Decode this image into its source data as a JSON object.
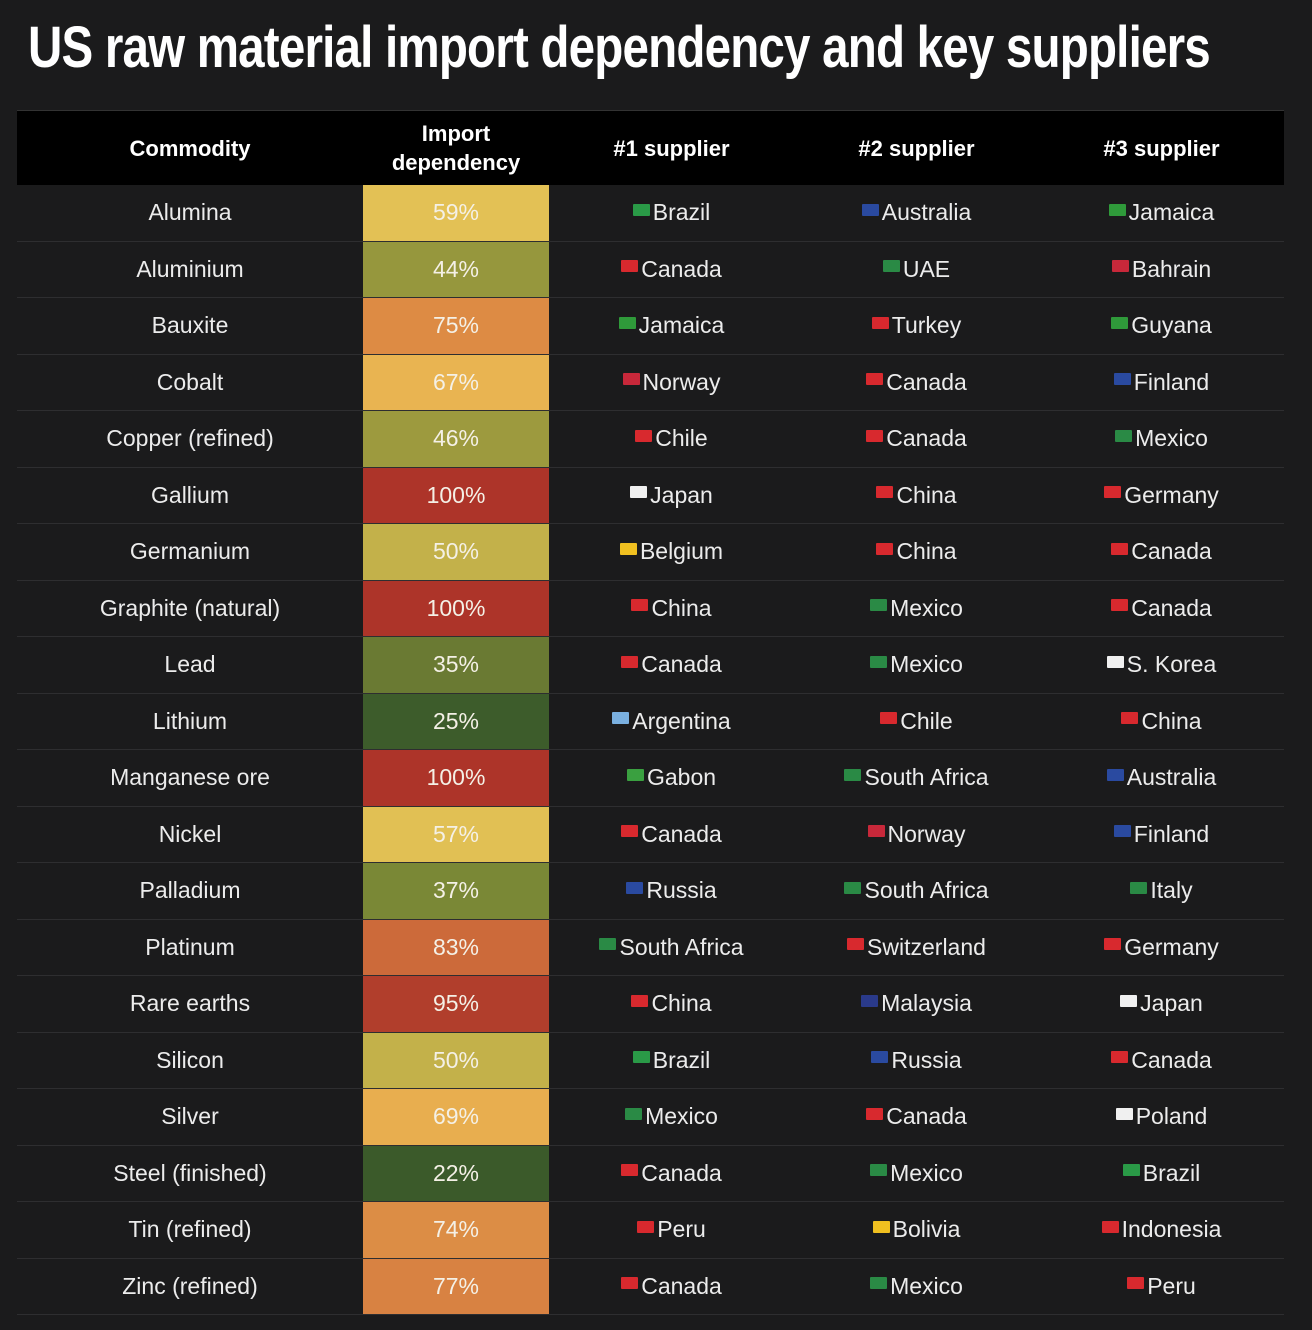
{
  "title": "US raw material import dependency and key suppliers",
  "headers": {
    "commodity": "Commodity",
    "dependency": "Import dependency",
    "s1": "#1 supplier",
    "s2": "#2 supplier",
    "s3": "#3 supplier"
  },
  "chart_data": {
    "type": "table",
    "columns": [
      "Commodity",
      "Import dependency",
      "#1 supplier",
      "#2 supplier",
      "#3 supplier"
    ],
    "rows": [
      {
        "commodity": "Alumina",
        "dependency": "59%",
        "value": 59,
        "s1": "Brazil",
        "s2": "Australia",
        "s3": "Jamaica"
      },
      {
        "commodity": "Aluminium",
        "dependency": "44%",
        "value": 44,
        "s1": "Canada",
        "s2": "UAE",
        "s3": "Bahrain"
      },
      {
        "commodity": "Bauxite",
        "dependency": "75%",
        "value": 75,
        "s1": "Jamaica",
        "s2": "Turkey",
        "s3": "Guyana"
      },
      {
        "commodity": "Cobalt",
        "dependency": "67%",
        "value": 67,
        "s1": "Norway",
        "s2": "Canada",
        "s3": "Finland"
      },
      {
        "commodity": "Copper (refined)",
        "dependency": "46%",
        "value": 46,
        "s1": "Chile",
        "s2": "Canada",
        "s3": "Mexico"
      },
      {
        "commodity": "Gallium",
        "dependency": "100%",
        "value": 100,
        "s1": "Japan",
        "s2": "China",
        "s3": "Germany"
      },
      {
        "commodity": "Germanium",
        "dependency": "50%",
        "value": 50,
        "s1": "Belgium",
        "s2": "China",
        "s3": "Canada"
      },
      {
        "commodity": "Graphite (natural)",
        "dependency": "100%",
        "value": 100,
        "s1": "China",
        "s2": "Mexico",
        "s3": "Canada"
      },
      {
        "commodity": "Lead",
        "dependency": "35%",
        "value": 35,
        "s1": "Canada",
        "s2": "Mexico",
        "s3": "S. Korea"
      },
      {
        "commodity": "Lithium",
        "dependency": "25%",
        "value": 25,
        "s1": "Argentina",
        "s2": "Chile",
        "s3": "China"
      },
      {
        "commodity": "Manganese ore",
        "dependency": "100%",
        "value": 100,
        "s1": "Gabon",
        "s2": "South Africa",
        "s3": "Australia"
      },
      {
        "commodity": "Nickel",
        "dependency": "57%",
        "value": 57,
        "s1": "Canada",
        "s2": "Norway",
        "s3": "Finland"
      },
      {
        "commodity": "Palladium",
        "dependency": "37%",
        "value": 37,
        "s1": "Russia",
        "s2": "South Africa",
        "s3": "Italy"
      },
      {
        "commodity": "Platinum",
        "dependency": "83%",
        "value": 83,
        "s1": "South Africa",
        "s2": "Switzerland",
        "s3": "Germany"
      },
      {
        "commodity": "Rare earths",
        "dependency": "95%",
        "value": 95,
        "s1": "China",
        "s2": "Malaysia",
        "s3": "Japan"
      },
      {
        "commodity": "Silicon",
        "dependency": "50%",
        "value": 50,
        "s1": "Brazil",
        "s2": "Russia",
        "s3": "Canada"
      },
      {
        "commodity": "Silver",
        "dependency": "69%",
        "value": 69,
        "s1": "Mexico",
        "s2": "Canada",
        "s3": "Poland"
      },
      {
        "commodity": "Steel (finished)",
        "dependency": "22%",
        "value": 22,
        "s1": "Canada",
        "s2": "Mexico",
        "s3": "Brazil"
      },
      {
        "commodity": "Tin (refined)",
        "dependency": "74%",
        "value": 74,
        "s1": "Peru",
        "s2": "Bolivia",
        "s3": "Indonesia"
      },
      {
        "commodity": "Zinc (refined)",
        "dependency": "77%",
        "value": 77,
        "s1": "Canada",
        "s2": "Mexico",
        "s3": "Peru"
      }
    ]
  },
  "colors": {
    "background": "#1b1b1c",
    "header_bg": "#000000",
    "dep_colors": {
      "22": "#3b5a2a",
      "25": "#3d5c2b",
      "35": "#6a7a33",
      "37": "#7a8836",
      "44": "#96973d",
      "46": "#9d9a3e",
      "50": "#c3b14a",
      "57": "#e1c054",
      "59": "#e3c155",
      "67": "#e9b451",
      "69": "#e8ae4f",
      "74": "#dc8d45",
      "75": "#dd8b44",
      "77": "#d88242",
      "83": "#cc6a3a",
      "95": "#b13e2c",
      "100": "#ad3429"
    },
    "flags": {
      "Brazil": "#2a9a47",
      "Australia": "#2a4aa0",
      "Jamaica": "#2f9a3a",
      "Canada": "#d8292e",
      "UAE": "#2a8a45",
      "Bahrain": "#c8283a",
      "Turkey": "#d8282e",
      "Guyana": "#2f9a3a",
      "Norway": "#c8283a",
      "Finland": "#2a4aa0",
      "Chile": "#d8292e",
      "Mexico": "#2a8a45",
      "Japan": "#f0f0f0",
      "China": "#d8292e",
      "Germany": "#d8292e",
      "Belgium": "#f0c020",
      "S. Korea": "#f0f0f0",
      "Argentina": "#7ab0e0",
      "Gabon": "#3aa040",
      "South Africa": "#2a8a45",
      "Russia": "#2a4aa0",
      "Italy": "#2a8a45",
      "Switzerland": "#d8292e",
      "Malaysia": "#2a3a8a",
      "Poland": "#f0f0f0",
      "Peru": "#d8292e",
      "Bolivia": "#f0c020",
      "Indonesia": "#d8292e"
    }
  }
}
